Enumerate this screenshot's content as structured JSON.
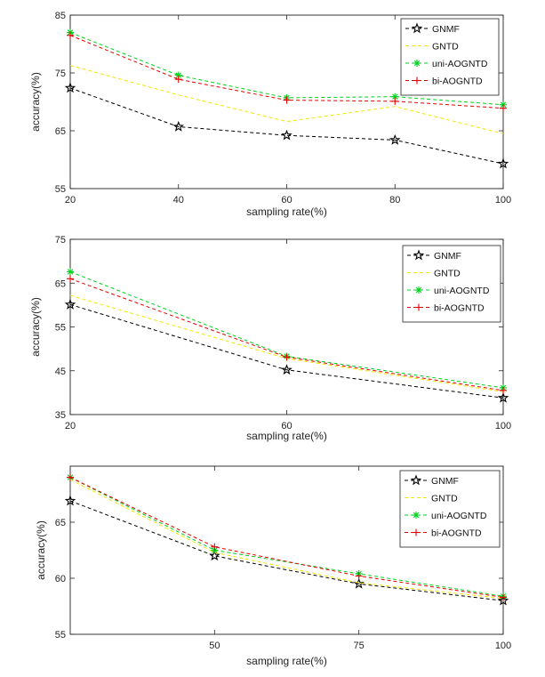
{
  "legend_labels": [
    "GNMF",
    "GNTD",
    "uni-AOGNTD",
    "bi-AOGNTD"
  ],
  "series_colors": {
    "GNMF": "#000000",
    "GNTD": "#f2e600",
    "uni-AOGNTD": "#00d21e",
    "bi-AOGNTD": "#e60000"
  },
  "series_markers": {
    "GNMF": "star",
    "GNTD": "none",
    "uni-AOGNTD": "asterisk",
    "bi-AOGNTD": "plus"
  },
  "chart_data": [
    {
      "type": "line",
      "title": "",
      "xlabel": "sampling rate(%)",
      "ylabel": "accuracy(%)",
      "xlim": [
        20,
        100
      ],
      "ylim": [
        55,
        85
      ],
      "xticks": [
        20,
        40,
        60,
        80,
        100
      ],
      "yticks": [
        55,
        65,
        75,
        85
      ],
      "legend_position": "top-right",
      "x": [
        20,
        40,
        60,
        80,
        100
      ],
      "series": [
        {
          "name": "GNMF",
          "values": [
            72.4,
            65.7,
            64.2,
            63.4,
            59.3
          ]
        },
        {
          "name": "GNTD",
          "values": [
            76.3,
            71.2,
            66.6,
            69.2,
            64.5
          ]
        },
        {
          "name": "uni-AOGNTD",
          "values": [
            82.0,
            74.6,
            70.7,
            70.9,
            69.5
          ]
        },
        {
          "name": "bi-AOGNTD",
          "values": [
            81.5,
            73.9,
            70.3,
            70.1,
            68.9
          ]
        }
      ]
    },
    {
      "type": "line",
      "title": "",
      "xlabel": "sampling rate(%)",
      "ylabel": "accuracy(%)",
      "xlim": [
        20,
        100
      ],
      "ylim": [
        35,
        75
      ],
      "xticks": [
        20,
        60,
        100
      ],
      "yticks": [
        35,
        45,
        55,
        65,
        75
      ],
      "legend_position": "top-right",
      "x": [
        20,
        60,
        100
      ],
      "series": [
        {
          "name": "GNMF",
          "values": [
            60.1,
            45.2,
            38.8
          ]
        },
        {
          "name": "GNTD",
          "values": [
            62.2,
            47.8,
            40.2
          ]
        },
        {
          "name": "uni-AOGNTD",
          "values": [
            67.6,
            48.3,
            41.1
          ]
        },
        {
          "name": "bi-AOGNTD",
          "values": [
            66.0,
            48.1,
            40.5
          ]
        }
      ]
    },
    {
      "type": "line",
      "title": "",
      "xlabel": "sampling rate(%)",
      "ylabel": "accuracy(%)",
      "xlim": [
        25,
        100
      ],
      "ylim": [
        55,
        70
      ],
      "xticks": [
        50,
        75,
        100
      ],
      "yticks": [
        55,
        60,
        65
      ],
      "legend_position": "top-right",
      "x": [
        25,
        50,
        75,
        100
      ],
      "series": [
        {
          "name": "GNMF",
          "values": [
            66.9,
            62.0,
            59.5,
            58.0
          ]
        },
        {
          "name": "GNTD",
          "values": [
            68.8,
            62.3,
            59.6,
            58.2
          ]
        },
        {
          "name": "uni-AOGNTD",
          "values": [
            69.0,
            62.5,
            60.4,
            58.4
          ]
        },
        {
          "name": "bi-AOGNTD",
          "values": [
            69.0,
            62.8,
            60.2,
            58.3
          ]
        }
      ]
    }
  ]
}
